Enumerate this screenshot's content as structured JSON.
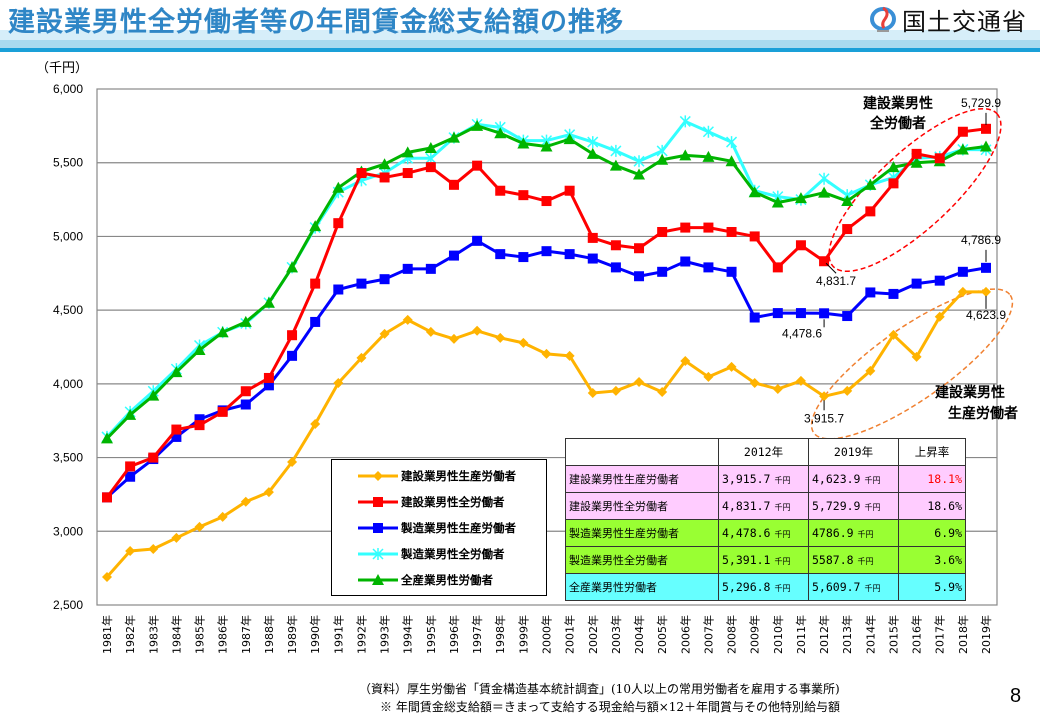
{
  "header": {
    "title": "建設業男性全労働者等の年間賃金総支給額の推移",
    "ministry": "国土交通省"
  },
  "colors": {
    "title_blue": "#2f86c6",
    "const_production": "#ffb300",
    "const_all": "#ff0000",
    "mfg_production": "#0000ff",
    "mfg_all": "#33ffff",
    "all_industry": "#00b400",
    "pink_row": "#ffccff",
    "green_row": "#99ff33",
    "cyan_row": "#66ffff",
    "highlight_red": "#ff0000"
  },
  "chart_data": {
    "type": "line",
    "title": "建設業男性全労働者等の年間賃金総支給額の推移",
    "ylabel": "（千円）",
    "xlabel": "",
    "ylim": [
      2500,
      6000
    ],
    "yticks": [
      2500,
      3000,
      3500,
      4000,
      4500,
      5000,
      5500,
      6000
    ],
    "ytick_labels": [
      "2,500",
      "3,000",
      "3,500",
      "4,000",
      "4,500",
      "5,000",
      "5,500",
      "6,000"
    ],
    "grid": true,
    "legend_position": "bottom-center",
    "categories": [
      "1981年",
      "1982年",
      "1983年",
      "1984年",
      "1985年",
      "1986年",
      "1987年",
      "1988年",
      "1989年",
      "1990年",
      "1991年",
      "1992年",
      "1993年",
      "1994年",
      "1995年",
      "1996年",
      "1997年",
      "1998年",
      "1999年",
      "2000年",
      "2001年",
      "2002年",
      "2003年",
      "2004年",
      "2005年",
      "2006年",
      "2007年",
      "2008年",
      "2009年",
      "2010年",
      "2011年",
      "2012年",
      "2013年",
      "2014年",
      "2015年",
      "2016年",
      "2017年",
      "2018年",
      "2019年"
    ],
    "series": [
      {
        "name": "建設業男性生産労働者",
        "color_key": "const_production",
        "marker": "diamond",
        "values": [
          2690,
          2866,
          2880,
          2955,
          3030,
          3098,
          3200,
          3266,
          3470,
          3728,
          4006,
          4176,
          4339,
          4434,
          4353,
          4305,
          4360,
          4312,
          4278,
          4203,
          4190,
          3938,
          3952,
          4013,
          3945,
          4155,
          4047,
          4115,
          4006,
          3965,
          4020,
          3915.7,
          3952,
          4088,
          4332,
          4183,
          4455,
          4624,
          4623.9
        ]
      },
      {
        "name": "建設業男性全労働者",
        "color_key": "const_all",
        "marker": "square",
        "values": [
          3230,
          3440,
          3500,
          3690,
          3720,
          3810,
          3950,
          4040,
          4330,
          4680,
          5090,
          5430,
          5400,
          5430,
          5470,
          5350,
          5480,
          5310,
          5280,
          5240,
          5310,
          4990,
          4940,
          4920,
          5030,
          5060,
          5060,
          5030,
          5000,
          4790,
          4940,
          4831.7,
          5050,
          5170,
          5360,
          5560,
          5530,
          5710,
          5729.9
        ]
      },
      {
        "name": "製造業男性生産労働者",
        "color_key": "mfg_production",
        "marker": "square",
        "values": [
          3230,
          3370,
          3490,
          3640,
          3760,
          3820,
          3860,
          3990,
          4190,
          4420,
          4640,
          4680,
          4710,
          4780,
          4780,
          4870,
          4970,
          4880,
          4860,
          4900,
          4880,
          4850,
          4790,
          4730,
          4760,
          4830,
          4790,
          4760,
          4450,
          4480,
          4480,
          4478.6,
          4460,
          4620,
          4610,
          4680,
          4700,
          4760,
          4786.9
        ]
      },
      {
        "name": "製造業男性全労働者",
        "color_key": "mfg_all",
        "marker": "asterisk",
        "values": [
          3640,
          3810,
          3950,
          4100,
          4260,
          4350,
          4410,
          4550,
          4790,
          5060,
          5300,
          5380,
          5430,
          5530,
          5530,
          5670,
          5760,
          5740,
          5650,
          5650,
          5690,
          5640,
          5580,
          5510,
          5580,
          5780,
          5710,
          5640,
          5310,
          5270,
          5250,
          5391.1,
          5280,
          5350,
          5400,
          5530,
          5540,
          5590,
          5587.8
        ]
      },
      {
        "name": "全産業男性労働者",
        "color_key": "all_industry",
        "marker": "triangle",
        "values": [
          3630,
          3790,
          3920,
          4080,
          4230,
          4350,
          4420,
          4550,
          4790,
          5070,
          5330,
          5440,
          5490,
          5570,
          5600,
          5670,
          5750,
          5700,
          5630,
          5610,
          5660,
          5560,
          5480,
          5420,
          5520,
          5550,
          5540,
          5510,
          5300,
          5230,
          5260,
          5296.8,
          5240,
          5350,
          5470,
          5500,
          5510,
          5590,
          5609.7
        ]
      }
    ],
    "annotations": [
      {
        "text": "5,729.9",
        "series": 1,
        "year": "2019年",
        "value": 5729.9
      },
      {
        "text": "4,831.7",
        "series": 1,
        "year": "2012年",
        "value": 4831.7
      },
      {
        "text": "4,786.9",
        "series": 2,
        "year": "2019年",
        "value": 4786.9
      },
      {
        "text": "4,478.6",
        "series": 2,
        "year": "2012年",
        "value": 4478.6
      },
      {
        "text": "4,623.9",
        "series": 0,
        "year": "2019年",
        "value": 4623.9
      },
      {
        "text": "3,915.7",
        "series": 0,
        "year": "2012年",
        "value": 3915.7
      }
    ],
    "callouts": [
      {
        "line1": "建設業男性",
        "line2": "全労働者",
        "series": 1
      },
      {
        "line1": "建設業男性",
        "line2": "生産労働者",
        "series": 0
      }
    ]
  },
  "summary_table": {
    "headers": [
      "",
      "2012年",
      "2019年",
      "上昇率"
    ],
    "unit": "千円",
    "rows": [
      {
        "name": "建設業男性生産労働者",
        "v2012": "3,915.7",
        "v2019": "4,623.9",
        "rate": "18.1%",
        "color_key": "pink_row",
        "rate_highlight": true
      },
      {
        "name": "建設業男性全労働者",
        "v2012": "4,831.7",
        "v2019": "5,729.9",
        "rate": "18.6%",
        "color_key": "pink_row",
        "rate_highlight": false
      },
      {
        "name": "製造業男性生産労働者",
        "v2012": "4,478.6",
        "v2019": "4786.9",
        "rate": "6.9%",
        "color_key": "green_row",
        "rate_highlight": false
      },
      {
        "name": "製造業男性全労働者",
        "v2012": "5,391.1",
        "v2019": "5587.8",
        "rate": "3.6%",
        "color_key": "green_row",
        "rate_highlight": false
      },
      {
        "name": "全産業男性労働者",
        "v2012": "5,296.8",
        "v2019": "5,609.7",
        "rate": "5.9%",
        "color_key": "cyan_row",
        "rate_highlight": false
      }
    ]
  },
  "footer": {
    "source": "（資料）厚生労働省「賃金構造基本統計調査」(10人以上の常用労働者を雇用する事業所)",
    "note": "※ 年間賃金総支給額＝きまって支給する現金給与額×12＋年間賞与その他特別給与額",
    "page_number": "8"
  }
}
